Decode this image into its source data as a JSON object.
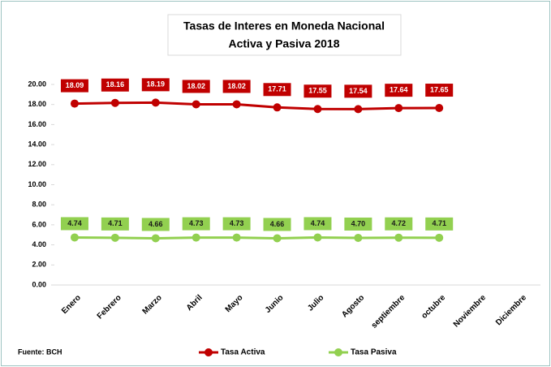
{
  "chart_data": {
    "type": "line",
    "title": "Tasas de Interes en Moneda Nacional",
    "subtitle": "Activa y Pasiva 2018",
    "annotation": "Fuente: BCH",
    "categories": [
      "Enero",
      "Febrero",
      "Marzo",
      "Abril",
      "Mayo",
      "Junio",
      "Julio",
      "Agosto",
      "septiembre",
      "octubre",
      "Noviembre",
      "Diciembre"
    ],
    "series": [
      {
        "name": "Tasa Activa",
        "color": "#c00000",
        "values": [
          18.09,
          18.16,
          18.19,
          18.02,
          18.02,
          17.71,
          17.55,
          17.54,
          17.64,
          17.65,
          null,
          null
        ],
        "value_labels": [
          "18.09",
          "18.16",
          "18.19",
          "18.02",
          "18.02",
          "17.71",
          "17.55",
          "17.54",
          "17.64",
          "17.65",
          null,
          null
        ]
      },
      {
        "name": "Tasa Pasiva",
        "color": "#92d050",
        "values": [
          4.74,
          4.71,
          4.66,
          4.73,
          4.73,
          4.66,
          4.74,
          4.7,
          4.72,
          4.71,
          null,
          null
        ],
        "value_labels": [
          "4.74",
          "4.71",
          "4.66",
          "4.73",
          "4.73",
          "4.66",
          "4.74",
          "4.70",
          "4.72",
          "4.71",
          null,
          null
        ]
      }
    ],
    "ylim": [
      0,
      20
    ],
    "yticks": [
      {
        "value": 0,
        "label": "0.00"
      },
      {
        "value": 2,
        "label": "2.00"
      },
      {
        "value": 4,
        "label": "4.00"
      },
      {
        "value": 6,
        "label": "6.00"
      },
      {
        "value": 8,
        "label": "8.00"
      },
      {
        "value": 10,
        "label": "10.00"
      },
      {
        "value": 12,
        "label": "12.00"
      },
      {
        "value": 14,
        "label": "14.00"
      },
      {
        "value": 16,
        "label": "16.00"
      },
      {
        "value": 18,
        "label": "18.00"
      },
      {
        "value": 20,
        "label": "20.00"
      }
    ],
    "grid": false,
    "legend": "bottom"
  }
}
